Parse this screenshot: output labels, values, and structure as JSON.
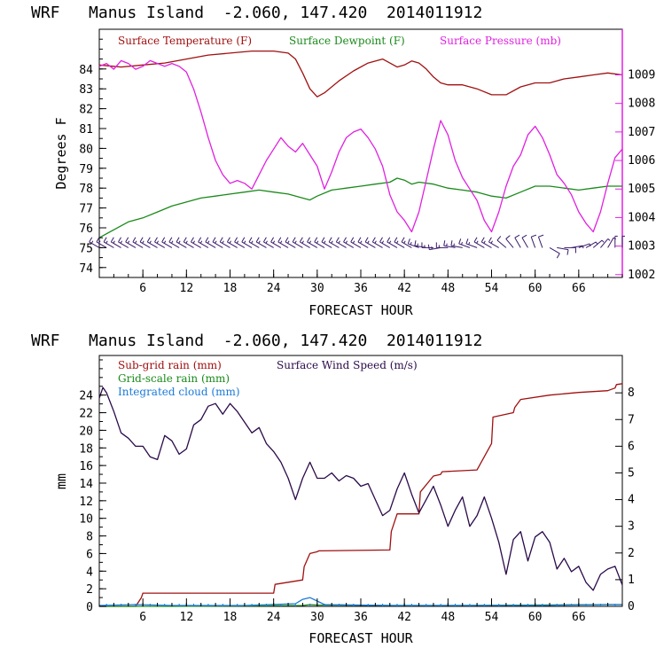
{
  "chart_data": [
    {
      "type": "line",
      "title": "WRF   Manus Island  -2.060, 147.420  2014011912",
      "xlabel": "FORECAST HOUR",
      "ylabel": "Degrees F",
      "xlim": [
        0,
        72
      ],
      "ylim": [
        73.5,
        86
      ],
      "y2lim": [
        1001.9,
        1010.6
      ],
      "x_ticks": [
        "6",
        "12",
        "18",
        "24",
        "30",
        "36",
        "42",
        "48",
        "54",
        "60",
        "66"
      ],
      "y_ticks": [
        "74",
        "75",
        "76",
        "77",
        "78",
        "79",
        "80",
        "81",
        "82",
        "83",
        "84"
      ],
      "y2_ticks": [
        "1002",
        "1003",
        "1004",
        "1005",
        "1006",
        "1007",
        "1008",
        "1009"
      ],
      "series": [
        {
          "name": "Surface Temperature (F)",
          "color": "#a01010",
          "axis": "left",
          "x": [
            0,
            3,
            6,
            9,
            12,
            15,
            18,
            21,
            24,
            26,
            27,
            28,
            29,
            30,
            31,
            33,
            35,
            37,
            39,
            40,
            41,
            42,
            43,
            44,
            45,
            46,
            47,
            48,
            50,
            52,
            54,
            56,
            58,
            60,
            62,
            64,
            66,
            68,
            70,
            72
          ],
          "y": [
            84.2,
            84.1,
            84.2,
            84.3,
            84.5,
            84.7,
            84.8,
            84.9,
            84.9,
            84.8,
            84.5,
            83.8,
            83.0,
            82.6,
            82.8,
            83.4,
            83.9,
            84.3,
            84.5,
            84.3,
            84.1,
            84.2,
            84.4,
            84.3,
            84.0,
            83.6,
            83.3,
            83.2,
            83.2,
            83.0,
            82.7,
            82.7,
            83.1,
            83.3,
            83.3,
            83.5,
            83.6,
            83.7,
            83.8,
            83.7
          ]
        },
        {
          "name": "Surface Dewpoint (F)",
          "color": "#1a8a1a",
          "axis": "left",
          "x": [
            0,
            2,
            4,
            6,
            8,
            10,
            12,
            14,
            16,
            18,
            20,
            22,
            24,
            26,
            28,
            29,
            30,
            32,
            34,
            36,
            38,
            40,
            41,
            42,
            43,
            44,
            46,
            48,
            50,
            52,
            54,
            56,
            58,
            60,
            62,
            64,
            66,
            68,
            70,
            72
          ],
          "y": [
            75.5,
            75.9,
            76.3,
            76.5,
            76.8,
            77.1,
            77.3,
            77.5,
            77.6,
            77.7,
            77.8,
            77.9,
            77.8,
            77.7,
            77.5,
            77.4,
            77.6,
            77.9,
            78.0,
            78.1,
            78.2,
            78.3,
            78.5,
            78.4,
            78.2,
            78.3,
            78.2,
            78.0,
            77.9,
            77.8,
            77.6,
            77.5,
            77.8,
            78.1,
            78.1,
            78.0,
            77.9,
            78.0,
            78.1,
            78.1
          ]
        },
        {
          "name": "Surface Pressure (mb)",
          "color": "#e020e0",
          "axis": "right",
          "x": [
            0,
            1,
            2,
            3,
            4,
            5,
            6,
            7,
            8,
            9,
            10,
            11,
            12,
            13,
            14,
            15,
            16,
            17,
            18,
            19,
            20,
            21,
            22,
            23,
            24,
            25,
            26,
            27,
            28,
            29,
            30,
            31,
            32,
            33,
            34,
            35,
            36,
            37,
            38,
            39,
            40,
            41,
            42,
            43,
            44,
            45,
            46,
            47,
            48,
            49,
            50,
            51,
            52,
            53,
            54,
            55,
            56,
            57,
            58,
            59,
            60,
            61,
            62,
            63,
            64,
            65,
            66,
            67,
            68,
            69,
            70,
            71,
            72
          ],
          "y": [
            1009.3,
            1009.4,
            1009.2,
            1009.5,
            1009.4,
            1009.2,
            1009.3,
            1009.5,
            1009.4,
            1009.3,
            1009.4,
            1009.3,
            1009.1,
            1008.5,
            1007.7,
            1006.8,
            1006.0,
            1005.5,
            1005.2,
            1005.3,
            1005.2,
            1005.0,
            1005.5,
            1006.0,
            1006.4,
            1006.8,
            1006.5,
            1006.3,
            1006.6,
            1006.2,
            1005.8,
            1005.0,
            1005.6,
            1006.3,
            1006.8,
            1007.0,
            1007.1,
            1006.8,
            1006.4,
            1005.8,
            1004.8,
            1004.2,
            1003.9,
            1003.5,
            1004.2,
            1005.3,
            1006.4,
            1007.4,
            1006.9,
            1006.0,
            1005.4,
            1005.0,
            1004.6,
            1003.9,
            1003.5,
            1004.2,
            1005.1,
            1005.8,
            1006.2,
            1006.9,
            1007.2,
            1006.8,
            1006.2,
            1005.5,
            1005.2,
            1004.8,
            1004.2,
            1003.8,
            1003.5,
            1004.2,
            1005.2,
            1006.1,
            1006.4
          ]
        }
      ],
      "wind_barbs": {
        "y": 75,
        "x": [
          0,
          1,
          2,
          3,
          4,
          5,
          6,
          7,
          8,
          9,
          10,
          11,
          12,
          13,
          14,
          15,
          16,
          17,
          18,
          19,
          20,
          21,
          22,
          23,
          24,
          25,
          26,
          27,
          28,
          29,
          30,
          31,
          32,
          33,
          34,
          35,
          36,
          37,
          38,
          39,
          40,
          41,
          42,
          43,
          44,
          45,
          46,
          47,
          48,
          49,
          50,
          51,
          52,
          53,
          54,
          55,
          56,
          57,
          58,
          59,
          60,
          61,
          62,
          63,
          64,
          65,
          66,
          67,
          68,
          69,
          70,
          71,
          72
        ],
        "direction_deg": [
          300,
          300,
          300,
          300,
          300,
          300,
          300,
          300,
          300,
          300,
          300,
          300,
          300,
          300,
          300,
          300,
          300,
          300,
          300,
          300,
          300,
          300,
          300,
          300,
          300,
          300,
          300,
          300,
          300,
          300,
          300,
          300,
          300,
          300,
          300,
          300,
          300,
          300,
          300,
          300,
          300,
          300,
          300,
          300,
          290,
          280,
          270,
          260,
          270,
          280,
          280,
          290,
          290,
          300,
          300,
          300,
          310,
          320,
          330,
          330,
          340,
          340,
          120,
          100,
          90,
          80,
          70,
          60,
          50,
          40,
          30,
          0,
          0
        ],
        "speed_kt": [
          15,
          15,
          15,
          15,
          15,
          15,
          15,
          15,
          15,
          15,
          15,
          15,
          15,
          15,
          15,
          15,
          15,
          15,
          15,
          15,
          15,
          15,
          15,
          15,
          15,
          15,
          15,
          15,
          15,
          15,
          15,
          15,
          15,
          15,
          15,
          15,
          15,
          15,
          15,
          15,
          15,
          15,
          15,
          15,
          15,
          15,
          15,
          15,
          15,
          15,
          15,
          15,
          15,
          15,
          15,
          15,
          10,
          10,
          10,
          10,
          10,
          10,
          10,
          10,
          10,
          5,
          5,
          5,
          5,
          5,
          5,
          5,
          5
        ]
      },
      "colors": {
        "frame": "#000000",
        "right_axis": "#e020e0",
        "barb": "#3a1a6a"
      }
    },
    {
      "type": "line",
      "title": "WRF   Manus Island  -2.060, 147.420  2014011912",
      "xlabel": "FORECAST HOUR",
      "ylabel": "mm",
      "xlim": [
        0,
        72
      ],
      "ylim": [
        0,
        28.5
      ],
      "y2lim": [
        0,
        9.4
      ],
      "x_ticks": [
        "6",
        "12",
        "18",
        "24",
        "30",
        "36",
        "42",
        "48",
        "54",
        "60",
        "66"
      ],
      "y_ticks": [
        "0",
        "2",
        "4",
        "6",
        "8",
        "10",
        "12",
        "14",
        "16",
        "18",
        "20",
        "22",
        "24"
      ],
      "y2_ticks": [
        "0",
        "1",
        "2",
        "3",
        "4",
        "5",
        "6",
        "7",
        "8"
      ],
      "series": [
        {
          "name": "Sub-grid rain (mm)",
          "color": "#a01010",
          "axis": "left",
          "x": [
            0,
            5,
            5.8,
            6,
            24,
            24.2,
            28,
            28.2,
            29,
            30,
            30.2,
            40,
            40.2,
            41,
            44,
            44.2,
            46,
            47,
            47.2,
            52,
            54,
            54.2,
            57,
            57.2,
            58,
            62,
            66,
            70,
            71,
            71.2,
            72
          ],
          "y": [
            0,
            0,
            1.0,
            1.5,
            1.5,
            2.5,
            3.0,
            4.5,
            6.0,
            6.2,
            6.3,
            6.4,
            8.5,
            10.5,
            10.5,
            13.0,
            14.8,
            15.0,
            15.3,
            15.5,
            18.5,
            21.5,
            22.0,
            22.6,
            23.5,
            24.0,
            24.3,
            24.5,
            24.8,
            25.2,
            25.3
          ]
        },
        {
          "name": "Grid-scale rain (mm)",
          "color": "#1a8a1a",
          "axis": "left",
          "x": [
            0,
            10,
            20,
            28,
            29,
            30,
            40,
            50,
            60,
            70,
            72
          ],
          "y": [
            0,
            0,
            0.05,
            0.1,
            0.2,
            0.15,
            0.1,
            0.1,
            0.15,
            0.2,
            0.2
          ]
        },
        {
          "name": "Integrated cloud (mm)",
          "color": "#1a7ad8",
          "axis": "left",
          "x": [
            0,
            5,
            10,
            20,
            27,
            28,
            29,
            30,
            31,
            40,
            50,
            60,
            70,
            72
          ],
          "y": [
            0.1,
            0.2,
            0.1,
            0.1,
            0.3,
            0.8,
            1.0,
            0.6,
            0.2,
            0.1,
            0.1,
            0.1,
            0.2,
            0.2
          ]
        },
        {
          "name": "Surface Wind Speed (m/s)",
          "color": "#2a0a4a",
          "axis": "right",
          "x": [
            0,
            0.5,
            1,
            2,
            3,
            4,
            5,
            6,
            7,
            8,
            9,
            10,
            11,
            12,
            13,
            14,
            15,
            16,
            17,
            18,
            19,
            20,
            21,
            22,
            23,
            24,
            25,
            26,
            27,
            28,
            29,
            30,
            31,
            32,
            33,
            34,
            35,
            36,
            37,
            38,
            39,
            40,
            41,
            42,
            43,
            44,
            45,
            46,
            47,
            48,
            49,
            50,
            51,
            52,
            53,
            54,
            55,
            56,
            57,
            58,
            59,
            60,
            61,
            62,
            63,
            64,
            65,
            66,
            67,
            68,
            69,
            70,
            71,
            72
          ],
          "y": [
            7.8,
            8.2,
            8.0,
            7.3,
            6.5,
            6.3,
            6.0,
            6.0,
            5.6,
            5.5,
            6.4,
            6.2,
            5.7,
            5.9,
            6.8,
            7.0,
            7.5,
            7.6,
            7.2,
            7.6,
            7.3,
            6.9,
            6.5,
            6.7,
            6.1,
            5.8,
            5.4,
            4.8,
            4.0,
            4.8,
            5.4,
            4.8,
            4.8,
            5.0,
            4.7,
            4.9,
            4.8,
            4.5,
            4.6,
            4.0,
            3.4,
            3.6,
            4.4,
            5.0,
            4.2,
            3.5,
            4.0,
            4.5,
            3.8,
            3.0,
            3.6,
            4.1,
            3.0,
            3.4,
            4.1,
            3.3,
            2.4,
            1.2,
            2.5,
            2.8,
            1.7,
            2.6,
            2.8,
            2.4,
            1.4,
            1.8,
            1.3,
            1.5,
            0.9,
            0.6,
            1.2,
            1.4,
            1.5,
            0.8
          ]
        }
      ],
      "colors": {
        "frame": "#000000"
      }
    }
  ]
}
